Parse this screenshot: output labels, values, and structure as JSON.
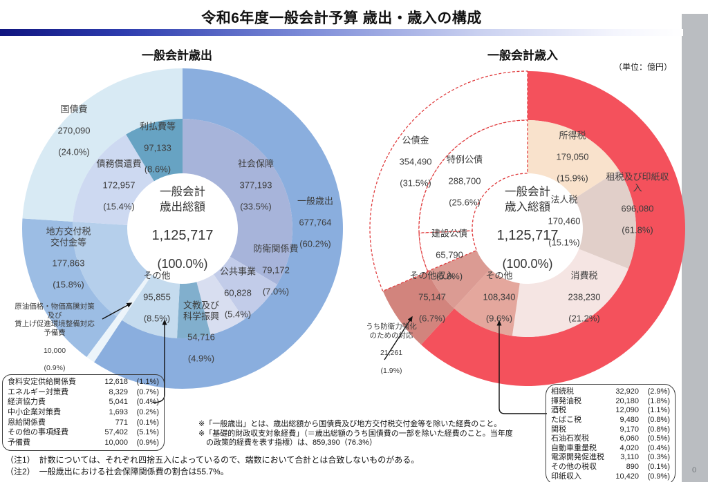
{
  "page": {
    "title": "令和6年度一般会計予算 歳出・歳入の構成",
    "unit_label": "（単位：億円）",
    "page_number": "0"
  },
  "expenditure": {
    "heading": "一般会計歳出",
    "labels": {
      "kokusaihi": {
        "name": "国債費",
        "value": "270,090",
        "pct": "(24.0%)"
      },
      "ribarai": {
        "name": "利払費等",
        "value": "97,133",
        "pct": "(8.6%)"
      },
      "saimu": {
        "name": "債務償還費",
        "value": "172,957",
        "pct": "(15.4%)"
      },
      "shakai": {
        "name": "社会保障",
        "value": "377,193",
        "pct": "(33.5%)"
      },
      "ippan": {
        "name": "一般歳出",
        "value": "677,764",
        "pct": "(60.2%)"
      },
      "boei": {
        "name": "防衛関係費",
        "value": "79,172",
        "pct": "(7.0%)"
      },
      "kokyo": {
        "name": "公共事業",
        "value": "60,828",
        "pct": "(5.4%)"
      },
      "bunkyo": {
        "name": "文教及び\n科学振興",
        "value": "54,716",
        "pct": "(4.9%)"
      },
      "sonota": {
        "name": "その他",
        "value": "95,855",
        "pct": "(8.5%)"
      },
      "chihou": {
        "name": "地方交付税\n交付金等",
        "value": "177,863",
        "pct": "(15.8%)"
      },
      "yobihi": {
        "name": "原油価格・物価高騰対策\n及び\n賃上げ促進環境整備対応\n予備費",
        "value": "10,000",
        "pct": "(0.9%)"
      },
      "center": {
        "name": "一般会計\n歳出総額",
        "value": "1,125,717",
        "pct": "(100.0%)"
      }
    },
    "table": {
      "rows": [
        {
          "label": "食料安定供給関係費",
          "value": "12,618",
          "pct": "(1.1%)"
        },
        {
          "label": "エネルギー対策費",
          "value": "8,329",
          "pct": "(0.7%)"
        },
        {
          "label": "経済協力費",
          "value": "5,041",
          "pct": "(0.4%)"
        },
        {
          "label": "中小企業対策費",
          "value": "1,693",
          "pct": "(0.2%)"
        },
        {
          "label": "恩給関係費",
          "value": "771",
          "pct": "(0.1%)"
        },
        {
          "label": "その他の事項経費",
          "value": "57,402",
          "pct": "(5.1%)"
        },
        {
          "label": "予備費",
          "value": "10,000",
          "pct": "(0.9%)"
        }
      ]
    }
  },
  "revenue": {
    "heading": "一般会計歳入",
    "labels": {
      "kosaikin": {
        "name": "公債金",
        "value": "354,490",
        "pct": "(31.5%)"
      },
      "tokurei": {
        "name": "特例公債",
        "value": "288,700",
        "pct": "(25.6%)"
      },
      "kensetsu": {
        "name": "建設公債",
        "value": "65,790",
        "pct": "(5.8%)"
      },
      "shotoku": {
        "name": "所得税",
        "value": "179,050",
        "pct": "(15.9%)"
      },
      "sozei": {
        "name": "租税及び印紙収入",
        "value": "696,080",
        "pct": "(61.8%)"
      },
      "hojin": {
        "name": "法人税",
        "value": "170,460",
        "pct": "(15.1%)"
      },
      "shohi": {
        "name": "消費税",
        "value": "238,230",
        "pct": "(21.2%)"
      },
      "sonota": {
        "name": "その他",
        "value": "108,340",
        "pct": "(9.6%)"
      },
      "sonotashunyu": {
        "name": "その他収入",
        "value": "75,147",
        "pct": "(6.7%)"
      },
      "boeiryoku": {
        "name": "うち防衛力強化\nのための対応",
        "value": "21,261",
        "pct": "(1.9%)"
      },
      "center": {
        "name": "一般会計\n歳入総額",
        "value": "1,125,717",
        "pct": "(100.0%)"
      }
    },
    "table": {
      "rows": [
        {
          "label": "相続税",
          "value": "32,920",
          "pct": "(2.9%)"
        },
        {
          "label": "揮発油税",
          "value": "20,180",
          "pct": "(1.8%)"
        },
        {
          "label": "酒税",
          "value": "12,090",
          "pct": "(1.1%)"
        },
        {
          "label": "たばこ税",
          "value": "9,480",
          "pct": "(0.8%)"
        },
        {
          "label": "関税",
          "value": "9,170",
          "pct": "(0.8%)"
        },
        {
          "label": "石油石炭税",
          "value": "6,060",
          "pct": "(0.5%)"
        },
        {
          "label": "自動車重量税",
          "value": "4,020",
          "pct": "(0.4%)"
        },
        {
          "label": "電源開発促進税",
          "value": "3,110",
          "pct": "(0.3%)"
        },
        {
          "label": "その他の税収",
          "value": "890",
          "pct": "(0.1%)"
        },
        {
          "label": "印紙収入",
          "value": "10,420",
          "pct": "(0.9%)"
        }
      ]
    }
  },
  "notes": {
    "aster": "※「一般歳出」とは、歳出総額から国債費及び地方交付税交付金等を除いた経費のこと。\n※「基礎的財政収支対象経費」（＝歳出総額のうち国債費の一部を除いた経費のこと。当年度\n　の政策的経費を表す指標）は、859,390（76.3%）",
    "bottom": "（注1）　計数については、それぞれ四捨五入によっているので、端数において合計とは合致しないものがある。\n（注2）　一般歳出における社会保障関係費の割合は55.7%。"
  },
  "chart_data": [
    {
      "type": "donut",
      "title": "一般会計歳出",
      "total": {
        "label": "一般会計歳出総額",
        "value": 1125717,
        "pct": 100.0
      },
      "outer_ring": [
        {
          "label": "一般歳出",
          "value": 677764,
          "pct": 60.2,
          "draw_pct": 59.3,
          "color": "#8aaede"
        },
        {
          "label": "原油価格・物価高騰対策及び賃上げ促進環境整備対応予備費",
          "value": 10000,
          "pct": 0.9,
          "color": "#ecf4fa"
        },
        {
          "label": "地方交付税交付金等",
          "value": 177863,
          "pct": 15.8,
          "color": "#9cbde4"
        },
        {
          "label": "国債費",
          "value": 270090,
          "pct": 24.0,
          "color": "#d8eaf4"
        }
      ],
      "inner_ring": [
        {
          "label": "社会保障",
          "value": 377193,
          "pct": 33.5,
          "color": "#a7b4da"
        },
        {
          "label": "防衛関係費",
          "value": 79172,
          "pct": 7.0,
          "color": "#c2cce9"
        },
        {
          "label": "公共事業",
          "value": 60828,
          "pct": 5.4,
          "color": "#d8def0"
        },
        {
          "label": "文教及び科学振興",
          "value": 54716,
          "pct": 4.9,
          "color": "#81afcd"
        },
        {
          "label": "その他",
          "value": 95855,
          "pct": 8.5,
          "color": "#c5dbee"
        },
        {
          "label": "予備費（原油価格・物価高騰対策等）",
          "value": 10000,
          "pct": 0.9,
          "color": "#ecf4fa"
        },
        {
          "label": "地方交付税交付金等",
          "value": 177863,
          "pct": 15.8,
          "color": "#b5cfeb"
        },
        {
          "label": "債務償還費",
          "value": 172957,
          "pct": 15.4,
          "color": "#cdd9f1"
        },
        {
          "label": "利払費等",
          "value": 97133,
          "pct": 8.6,
          "color": "#67a3c3"
        }
      ]
    },
    {
      "type": "donut",
      "title": "一般会計歳入",
      "total": {
        "label": "一般会計歳入総額",
        "value": 1125717,
        "pct": 100.0
      },
      "outer_ring": [
        {
          "label": "租税及び印紙収入",
          "value": 696080,
          "pct": 61.8,
          "color": "#f4515c"
        },
        {
          "label": "その他収入",
          "value": 75147,
          "pct": 6.7,
          "color": "#d2847d"
        },
        {
          "label": "公債金",
          "value": 354490,
          "pct": 31.5,
          "color": "#ffffff",
          "dashed": true
        }
      ],
      "inner_ring": [
        {
          "label": "所得税",
          "value": 179050,
          "pct": 15.9,
          "color": "#f9e2cc"
        },
        {
          "label": "法人税",
          "value": 170460,
          "pct": 15.1,
          "color": "#e1cfc9"
        },
        {
          "label": "消費税",
          "value": 238230,
          "pct": 21.2,
          "color": "#f5e5e3"
        },
        {
          "label": "その他",
          "value": 108340,
          "pct": 9.6,
          "color": "#e4a79d"
        },
        {
          "label": "その他収入",
          "value": 75147,
          "pct": 6.7,
          "color": "#db9b93"
        },
        {
          "label": "建設公債",
          "value": 65790,
          "pct": 5.8,
          "color": "#ffffff",
          "dashed": true
        },
        {
          "label": "特例公債",
          "value": 288700,
          "pct": 25.6,
          "color": "#ffffff",
          "dashed": true
        }
      ]
    }
  ]
}
